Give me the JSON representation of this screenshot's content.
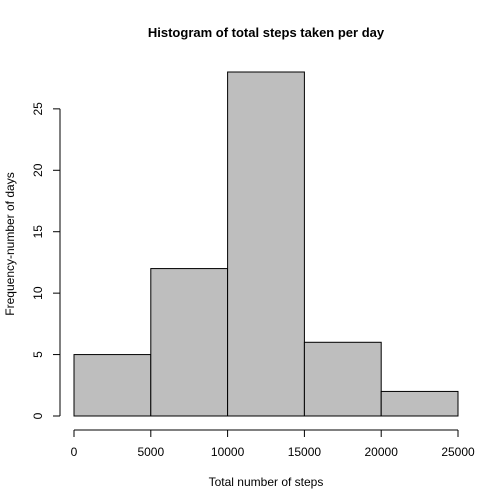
{
  "chart_data": {
    "type": "bar",
    "title": "Histogram of total steps taken per day",
    "xlabel": "Total number of steps",
    "ylabel": "Frequency-number of days",
    "bins": [
      {
        "start": 0,
        "end": 5000,
        "count": 5
      },
      {
        "start": 5000,
        "end": 10000,
        "count": 12
      },
      {
        "start": 10000,
        "end": 15000,
        "count": 28
      },
      {
        "start": 15000,
        "end": 20000,
        "count": 6
      },
      {
        "start": 20000,
        "end": 25000,
        "count": 2
      }
    ],
    "xlim": [
      0,
      25000
    ],
    "ylim": [
      0,
      28
    ],
    "x_ticks": [
      0,
      5000,
      10000,
      15000,
      20000,
      25000
    ],
    "y_ticks": [
      0,
      5,
      10,
      15,
      20,
      25
    ],
    "grid": false,
    "bar_color": "#bebebe",
    "edge_color": "#000000"
  }
}
